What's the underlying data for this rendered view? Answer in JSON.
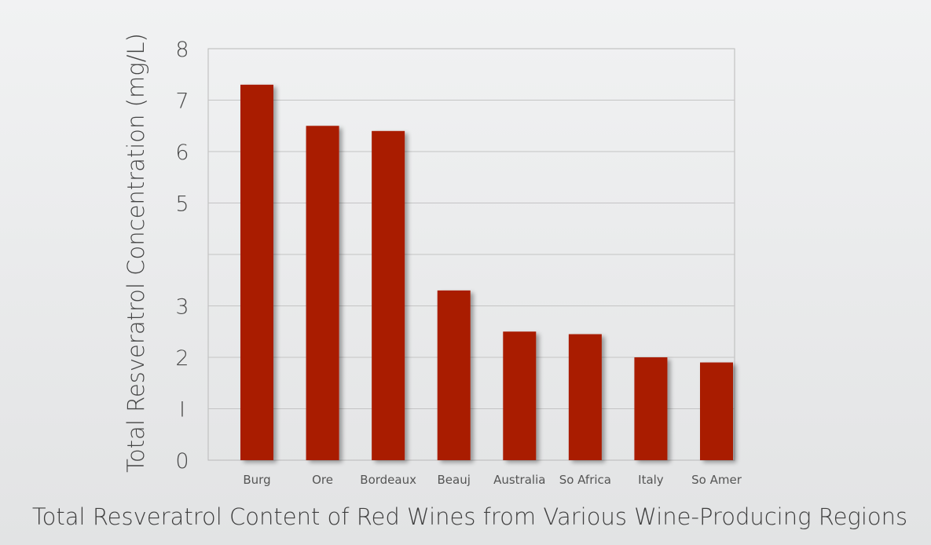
{
  "chart_data": {
    "type": "bar",
    "title": "",
    "caption": "Total Resveratrol Content of Red Wines from Various Wine-Producing Regions",
    "xlabel": "",
    "ylabel": "Total Resveratrol Concentration (mg/L)",
    "categories": [
      "Burg",
      "Ore",
      "Bordeaux",
      "Beauj",
      "Australia",
      "So Africa",
      "Italy",
      "So Amer"
    ],
    "values": [
      7.3,
      6.5,
      6.4,
      3.3,
      2.5,
      2.45,
      2.0,
      1.9
    ],
    "ylim": [
      0,
      8
    ],
    "yticks": [
      0,
      1,
      2,
      3,
      5,
      6,
      7,
      8
    ],
    "ytick_labels": [
      "0",
      "I",
      "2",
      "3",
      "5",
      "6",
      "7",
      "8"
    ],
    "grid": true,
    "bar_color": "#a91b06",
    "legend": "none"
  }
}
